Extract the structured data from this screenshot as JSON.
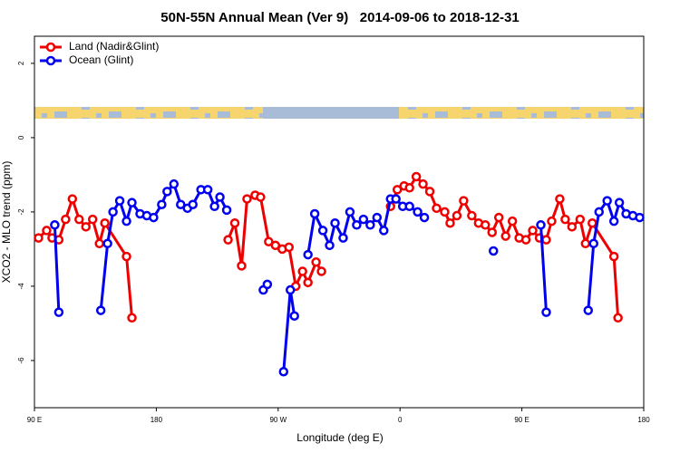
{
  "chart_data": {
    "type": "line",
    "title": "50N-55N Annual Mean (Ver 9)   2014-09-06 to 2018-12-31",
    "x_label": "Longitude (deg E)",
    "y_label": "XCO2 - MLO trend (ppm)",
    "xlim": [
      90,
      540
    ],
    "ylim": [
      -7.27,
      2.73
    ],
    "xticks": [
      {
        "value": 90,
        "label": "90 E"
      },
      {
        "value": 180,
        "label": "180"
      },
      {
        "value": 270,
        "label": "90 W"
      },
      {
        "value": 360,
        "label": "0"
      },
      {
        "value": 450,
        "label": "90 E"
      },
      {
        "value": 540,
        "label": "180"
      }
    ],
    "yticks": [
      -6,
      -4,
      -2,
      0,
      2
    ],
    "legend": "top-left",
    "series": [
      {
        "name": "Land (Nadir&Glint)",
        "color": "#ee0000",
        "x": [
          93,
          99,
          103,
          108,
          113,
          118,
          123,
          128,
          133,
          138,
          142,
          158,
          162,
          null,
          233,
          238,
          243,
          247,
          253,
          257,
          263,
          268,
          273,
          278,
          283,
          288,
          292,
          298,
          302,
          null,
          353,
          358,
          363,
          367,
          372,
          377,
          382,
          387,
          393,
          397,
          402,
          407,
          413,
          418,
          423,
          428,
          433,
          438,
          443,
          448,
          453,
          458,
          463,
          468,
          472,
          478,
          482,
          487,
          493,
          497,
          502,
          518,
          521
        ],
        "values": [
          -2.7,
          -2.5,
          -2.7,
          -2.75,
          -2.2,
          -1.65,
          -2.2,
          -2.4,
          -2.2,
          -2.85,
          -2.3,
          -3.2,
          -4.85,
          null,
          -2.75,
          -2.3,
          -3.45,
          -1.65,
          -1.55,
          -1.6,
          -2.8,
          -2.9,
          -3.0,
          -2.95,
          -4.0,
          -3.6,
          -3.9,
          -3.35,
          -3.6,
          null,
          -1.85,
          -1.4,
          -1.3,
          -1.35,
          -1.05,
          -1.25,
          -1.45,
          -1.9,
          -2.0,
          -2.3,
          -2.1,
          -1.7,
          -2.1,
          -2.3,
          -2.35,
          -2.55,
          -2.15,
          -2.65,
          -2.25,
          -2.7,
          -2.75,
          -2.5,
          -2.7,
          -2.75,
          -2.25,
          -1.65,
          -2.2,
          -2.4,
          -2.2,
          -2.85,
          -2.3,
          -3.2,
          -4.85
        ]
      },
      {
        "name": "Ocean (Glint)",
        "color": "#0000ee",
        "x": [
          105,
          108,
          null,
          139,
          144,
          148,
          153,
          158,
          162,
          168,
          173,
          178,
          184,
          188,
          193,
          198,
          203,
          207,
          213,
          218,
          223,
          227,
          232,
          null,
          259,
          262,
          null,
          274,
          279,
          282,
          null,
          292,
          297,
          303,
          308,
          312,
          318,
          323,
          328,
          333,
          338,
          343,
          348,
          353,
          357,
          362,
          367,
          373,
          378,
          null,
          429,
          null,
          464,
          468,
          null,
          499,
          503,
          507,
          513,
          518,
          522,
          527,
          532,
          537
        ],
        "values": [
          -2.35,
          -4.7,
          null,
          -4.65,
          -2.85,
          -2.0,
          -1.7,
          -2.25,
          -1.75,
          -2.05,
          -2.1,
          -2.15,
          -1.8,
          -1.45,
          -1.25,
          -1.8,
          -1.9,
          -1.8,
          -1.4,
          -1.4,
          -1.85,
          -1.6,
          -1.95,
          null,
          -4.1,
          -3.95,
          null,
          -6.3,
          -4.1,
          -4.8,
          null,
          -3.15,
          -2.05,
          -2.5,
          -2.9,
          -2.3,
          -2.7,
          -2.0,
          -2.35,
          -2.2,
          -2.35,
          -2.15,
          -2.5,
          -1.65,
          -1.65,
          -1.85,
          -1.85,
          -2.0,
          -2.15,
          null,
          -3.05,
          null,
          -2.35,
          -4.7,
          null,
          -4.65,
          -2.85,
          -2.0,
          -1.7,
          -2.25,
          -1.75,
          -2.05,
          -2.1,
          -2.15
        ]
      }
    ]
  }
}
